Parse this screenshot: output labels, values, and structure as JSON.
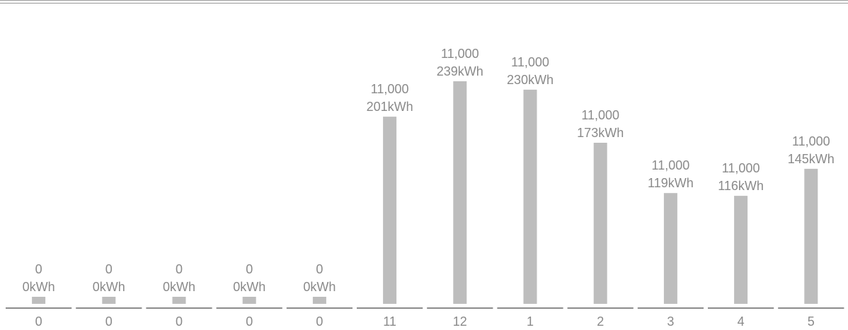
{
  "colors": {
    "bar": "#bdbdbd",
    "text": "#8a8a8a",
    "axis": "#8c8c8c"
  },
  "chart_data": {
    "type": "bar",
    "categories": [
      "0",
      "0",
      "0",
      "0",
      "0",
      "11",
      "12",
      "1",
      "2",
      "3",
      "4",
      "5"
    ],
    "values": [
      0,
      0,
      0,
      0,
      0,
      201,
      239,
      230,
      173,
      119,
      116,
      145
    ],
    "top_labels": [
      "0",
      "0",
      "0",
      "0",
      "0",
      "11,000",
      "11,000",
      "11,000",
      "11,000",
      "11,000",
      "11,000",
      "11,000"
    ],
    "value_labels": [
      "0kWh",
      "0kWh",
      "0kWh",
      "0kWh",
      "0kWh",
      "201kWh",
      "239kWh",
      "230kWh",
      "173kWh",
      "119kWh",
      "116kWh",
      "145kWh"
    ],
    "title": "",
    "xlabel": "",
    "ylabel": "",
    "grid": false,
    "legend": "none"
  }
}
